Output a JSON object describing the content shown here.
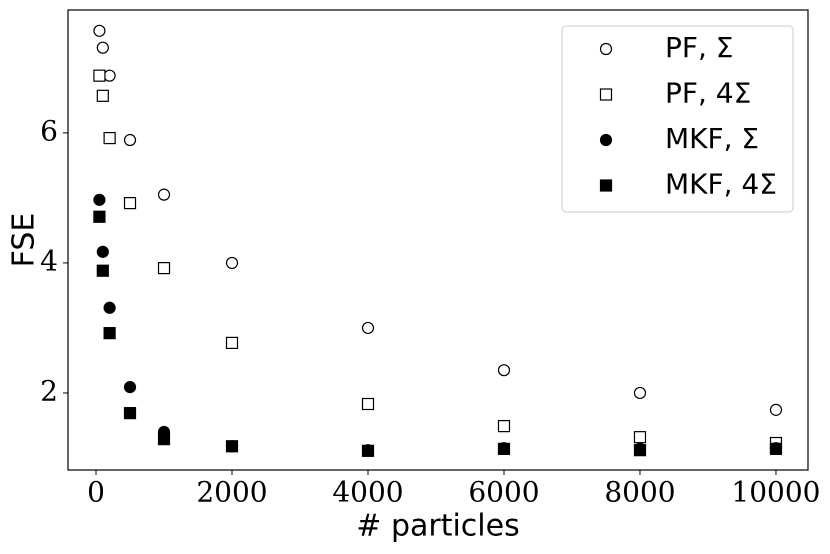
{
  "chart_data": {
    "type": "scatter",
    "x_label": "# particles",
    "y_label": "FSE",
    "x": [
      50,
      100,
      200,
      500,
      1000,
      2000,
      4000,
      6000,
      8000,
      10000
    ],
    "series": [
      {
        "name": "PF, Σ",
        "color": "#000000",
        "marker": "circle",
        "filled": false,
        "values": [
          7.57,
          7.31,
          6.88,
          5.89,
          5.05,
          4.0,
          3.0,
          2.35,
          2.0,
          1.74
        ]
      },
      {
        "name": "PF, 4Σ",
        "color": "#000000",
        "marker": "square",
        "filled": false,
        "values": [
          6.88,
          6.57,
          5.92,
          4.92,
          3.92,
          2.77,
          1.83,
          1.49,
          1.32,
          1.23
        ]
      },
      {
        "name": "MKF, Σ",
        "color": "#000000",
        "marker": "circle",
        "filled": true,
        "values": [
          4.97,
          4.17,
          3.31,
          2.09,
          1.4,
          1.18,
          1.12,
          1.15,
          1.14,
          1.15
        ]
      },
      {
        "name": "MKF, 4Σ",
        "color": "#000000",
        "marker": "square",
        "filled": true,
        "values": [
          4.71,
          3.88,
          2.92,
          1.69,
          1.29,
          1.18,
          1.11,
          1.14,
          1.12,
          1.14
        ]
      }
    ],
    "xlim": [
      -412,
      10471
    ],
    "ylim": [
      0.815,
      7.89
    ],
    "xticks": [
      0,
      2000,
      4000,
      6000,
      8000,
      10000
    ],
    "yticks": [
      2,
      4,
      6
    ],
    "legend": "upper right"
  }
}
